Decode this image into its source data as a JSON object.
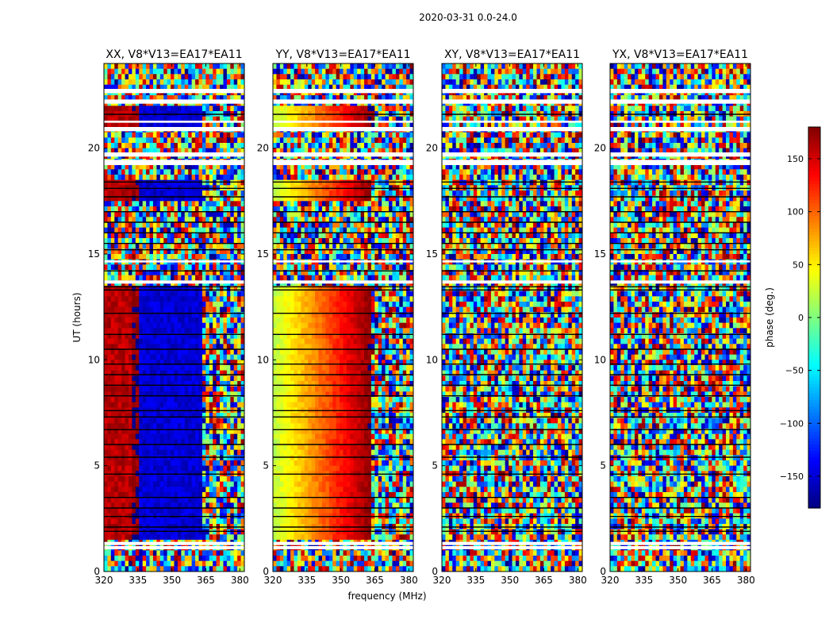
{
  "figure_title": "2020-03-31 0.0-24.0",
  "chart_data": {
    "type": "heatmap",
    "title": "2020-03-31 0.0-24.0",
    "xlabel": "frequency (MHz)",
    "ylabel": "UT (hours)",
    "xlim": [
      320,
      382
    ],
    "ylim": [
      0,
      24
    ],
    "xticks": [
      320,
      335,
      350,
      365,
      380
    ],
    "yticks": [
      0,
      5,
      10,
      15,
      20
    ],
    "colorbar": {
      "label": "phase (deg.)",
      "range": [
        -180,
        180
      ],
      "ticks": [
        150,
        100,
        50,
        0,
        -50,
        -100,
        -150
      ],
      "colormap": "jet"
    },
    "panels": [
      {
        "title": "XX, V8*V13=EA17*EA11",
        "polarization": "XX",
        "phase_pattern": [
          {
            "from": 320,
            "to": 333,
            "phase": 160
          },
          {
            "from": 333,
            "to": 336,
            "phase": 175
          },
          {
            "from": 336,
            "to": 364,
            "phase": -150,
            "slope": 0.0
          },
          {
            "from": 364,
            "to": 382,
            "phase": null
          }
        ]
      },
      {
        "title": "YY, V8*V13=EA17*EA11",
        "polarization": "YY",
        "phase_pattern": [
          {
            "from": 320,
            "to": 363,
            "phase_start": 20,
            "phase_end": 175
          },
          {
            "from": 363,
            "to": 382,
            "phase": null
          }
        ]
      },
      {
        "title": "XY, V8*V13=EA17*EA11",
        "polarization": "XY",
        "phase_pattern": [
          {
            "from": 320,
            "to": 382,
            "phase": null
          }
        ]
      },
      {
        "title": "YX, V8*V13=EA17*EA11",
        "polarization": "YX",
        "phase_pattern": [
          {
            "from": 320,
            "to": 382,
            "phase": null
          }
        ]
      }
    ]
  }
}
